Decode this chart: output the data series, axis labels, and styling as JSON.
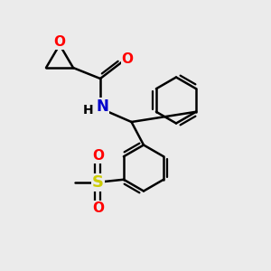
{
  "background_color": "#ebebeb",
  "bond_color": "#000000",
  "oxygen_color": "#ff0000",
  "nitrogen_color": "#0000cc",
  "sulfur_color": "#cccc00",
  "line_width": 1.8,
  "figsize": [
    3.0,
    3.0
  ],
  "dpi": 100,
  "xlim": [
    0,
    10
  ],
  "ylim": [
    0,
    10
  ]
}
